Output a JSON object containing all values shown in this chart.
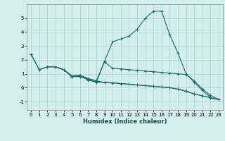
{
  "xlabel": "Humidex (Indice chaleur)",
  "bg_color": "#d4eeee",
  "grid_color": "#b0d0d0",
  "line_color": "#1a6b6b",
  "xlim": [
    -0.5,
    23.5
  ],
  "ylim": [
    -1.6,
    6.0
  ],
  "yticks": [
    -1,
    0,
    1,
    2,
    3,
    4,
    5
  ],
  "xticks": [
    0,
    1,
    2,
    3,
    4,
    5,
    6,
    7,
    8,
    9,
    10,
    11,
    12,
    13,
    14,
    15,
    16,
    17,
    18,
    19,
    20,
    21,
    22,
    23
  ],
  "series": [
    {
      "x": [
        0,
        1,
        2,
        3,
        4,
        5,
        6,
        7,
        8,
        9,
        10,
        11,
        12,
        13,
        14,
        15,
        16,
        17,
        18,
        19,
        20,
        21,
        22,
        23
      ],
      "y": [
        2.4,
        1.3,
        1.5,
        1.5,
        1.3,
        0.8,
        0.8,
        0.6,
        0.4,
        1.9,
        3.3,
        3.5,
        3.7,
        4.2,
        5.0,
        5.5,
        5.5,
        3.8,
        2.5,
        1.0,
        0.4,
        -0.2,
        -0.7,
        -0.85
      ]
    },
    {
      "x": [
        3,
        4,
        5,
        6,
        7,
        8,
        9,
        10,
        11,
        12,
        13,
        14,
        15,
        16,
        17,
        18,
        19,
        20,
        21,
        22,
        23
      ],
      "y": [
        1.5,
        1.3,
        0.85,
        0.9,
        0.65,
        0.5,
        1.85,
        1.4,
        1.35,
        1.3,
        1.25,
        1.2,
        1.15,
        1.1,
        1.05,
        1.0,
        0.95,
        0.5,
        -0.1,
        -0.55,
        -0.85
      ]
    },
    {
      "x": [
        3,
        4,
        5,
        6,
        7,
        8,
        9,
        10,
        11,
        12,
        13,
        14,
        15,
        16,
        17,
        18,
        19,
        20,
        21,
        22,
        23
      ],
      "y": [
        1.5,
        1.3,
        0.8,
        0.85,
        0.55,
        0.4,
        0.38,
        0.35,
        0.3,
        0.25,
        0.2,
        0.15,
        0.1,
        0.05,
        0.0,
        -0.1,
        -0.25,
        -0.45,
        -0.58,
        -0.72,
        -0.85
      ]
    },
    {
      "x": [
        0,
        1,
        2,
        3,
        4,
        5,
        6,
        7,
        8,
        9,
        10,
        11,
        12,
        13,
        14,
        15,
        16,
        17,
        18,
        19,
        20,
        21,
        22,
        23
      ],
      "y": [
        2.4,
        1.3,
        1.5,
        1.5,
        1.3,
        0.85,
        0.9,
        0.65,
        0.5,
        0.38,
        0.35,
        0.3,
        0.25,
        0.2,
        0.15,
        0.1,
        0.05,
        0.0,
        -0.1,
        -0.25,
        -0.45,
        -0.58,
        -0.72,
        -0.85
      ]
    }
  ]
}
